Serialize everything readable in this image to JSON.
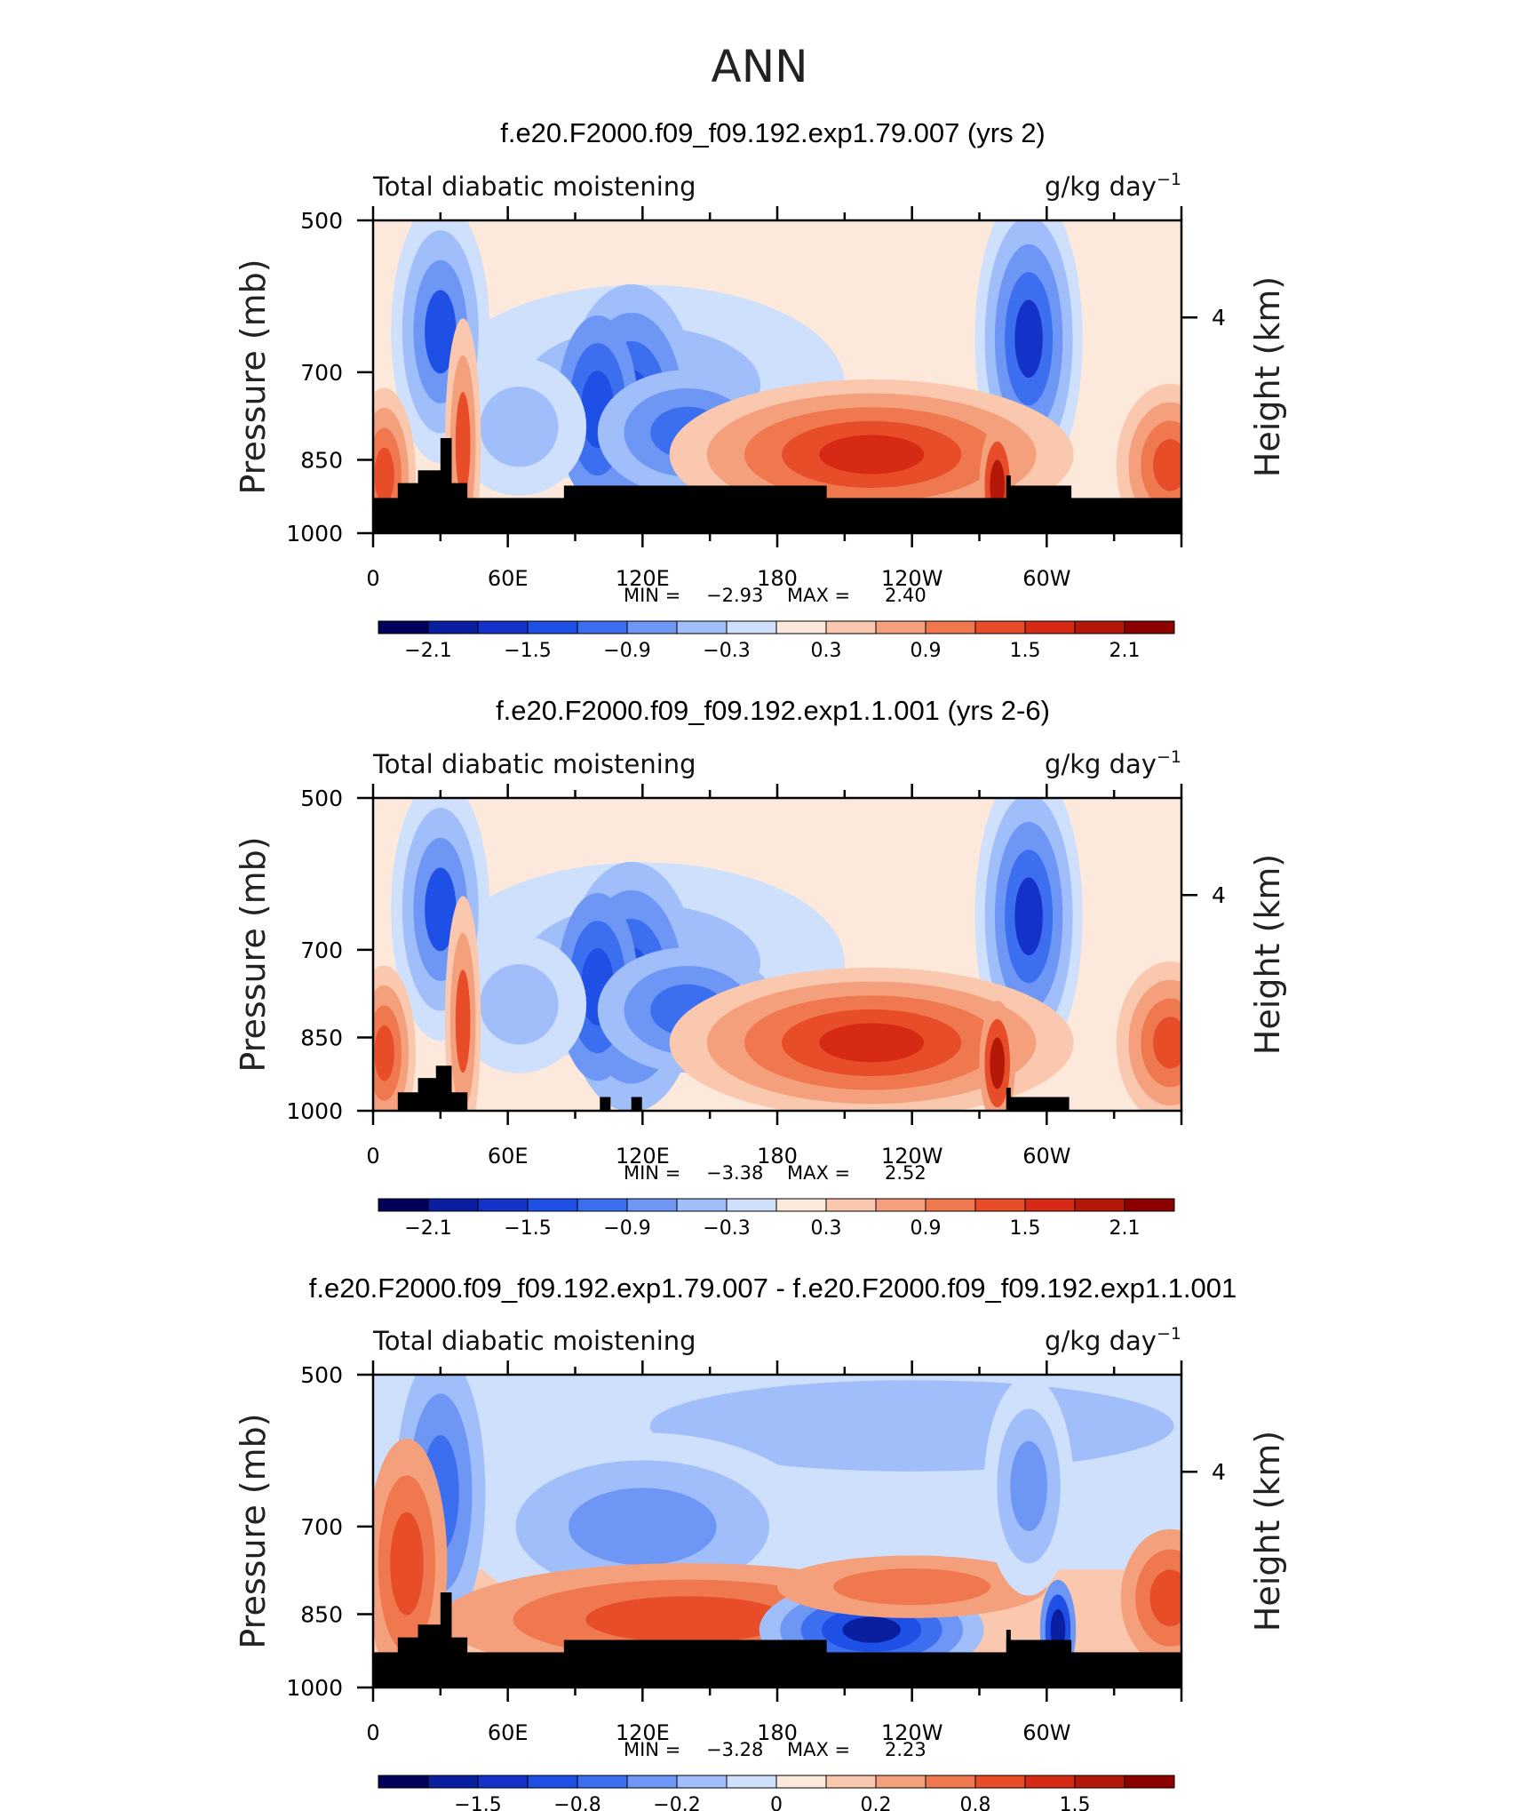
{
  "page_title": "ANN",
  "chart_data": [
    {
      "type": "heatmap",
      "title": "f.e20.F2000.f09_f09.192.exp1.79.007 (yrs 2)",
      "left_label": "Total diabatic moistening",
      "units_label": "g/kg day",
      "units_exponent": "−1",
      "ylabel": "Pressure (mb)",
      "y2label": "Height (km)",
      "xticks": [
        "0",
        "60E",
        "120E",
        "180",
        "120W",
        "60W"
      ],
      "yticks": [
        "500",
        "700",
        "850",
        "1000"
      ],
      "y2ticks": [
        "4"
      ],
      "min_label": "MIN =",
      "min_value": "−2.93",
      "max_label": "MAX =",
      "max_value": "2.40",
      "colorbar_labels": [
        "−2.1",
        "−1.5",
        "−0.9",
        "−0.3",
        "0.3",
        "0.9",
        "1.5",
        "2.1"
      ],
      "colorbar_colors": [
        "#00005a",
        "#0a1ea0",
        "#1432c8",
        "#1e50e6",
        "#3c6ef0",
        "#6e96f5",
        "#a0befa",
        "#cfe0fc",
        "#fde9dc",
        "#fac8ae",
        "#f5a07c",
        "#f0784e",
        "#e64d28",
        "#d72a14",
        "#b41808",
        "#8c0000"
      ],
      "ylim": [
        1000,
        500
      ],
      "xlim": [
        0,
        360
      ],
      "topography": "full"
    },
    {
      "type": "heatmap",
      "title": "f.e20.F2000.f09_f09.192.exp1.1.001 (yrs 2-6)",
      "left_label": "Total diabatic moistening",
      "units_label": "g/kg day",
      "units_exponent": "−1",
      "ylabel": "Pressure (mb)",
      "y2label": "Height (km)",
      "xticks": [
        "0",
        "60E",
        "120E",
        "180",
        "120W",
        "60W"
      ],
      "yticks": [
        "500",
        "700",
        "850",
        "1000"
      ],
      "y2ticks": [
        "4"
      ],
      "min_label": "MIN =",
      "min_value": "−3.38",
      "max_label": "MAX =",
      "max_value": "2.52",
      "colorbar_labels": [
        "−2.1",
        "−1.5",
        "−0.9",
        "−0.3",
        "0.3",
        "0.9",
        "1.5",
        "2.1"
      ],
      "colorbar_colors": [
        "#00005a",
        "#0a1ea0",
        "#1432c8",
        "#1e50e6",
        "#3c6ef0",
        "#6e96f5",
        "#a0befa",
        "#cfe0fc",
        "#fde9dc",
        "#fac8ae",
        "#f5a07c",
        "#f0784e",
        "#e64d28",
        "#d72a14",
        "#b41808",
        "#8c0000"
      ],
      "ylim": [
        1000,
        500
      ],
      "xlim": [
        0,
        360
      ],
      "topography": "partial"
    },
    {
      "type": "heatmap",
      "title": "f.e20.F2000.f09_f09.192.exp1.79.007 - f.e20.F2000.f09_f09.192.exp1.1.001",
      "left_label": "Total diabatic moistening",
      "units_label": "g/kg day",
      "units_exponent": "−1",
      "ylabel": "Pressure (mb)",
      "y2label": "Height (km)",
      "xticks": [
        "0",
        "60E",
        "120E",
        "180",
        "120W",
        "60W"
      ],
      "yticks": [
        "500",
        "700",
        "850",
        "1000"
      ],
      "y2ticks": [
        "4"
      ],
      "min_label": "MIN =",
      "min_value": "−3.28",
      "max_label": "MAX =",
      "max_value": "2.23",
      "colorbar_labels": [
        "−1.5",
        "−0.8",
        "−0.2",
        "0",
        "0.2",
        "0.8",
        "1.5"
      ],
      "colorbar_colors": [
        "#00005a",
        "#0a1ea0",
        "#1432c8",
        "#1e50e6",
        "#3c6ef0",
        "#6e96f5",
        "#a0befa",
        "#cfe0fc",
        "#fde9dc",
        "#fac8ae",
        "#f5a07c",
        "#f0784e",
        "#e64d28",
        "#d72a14",
        "#b41808",
        "#8c0000"
      ],
      "ylim": [
        1000,
        500
      ],
      "xlim": [
        0,
        360
      ],
      "topography": "full"
    }
  ]
}
